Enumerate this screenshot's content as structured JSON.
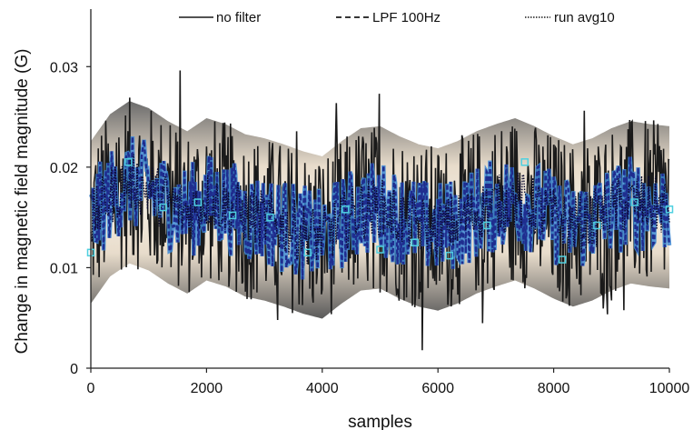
{
  "chart_data": {
    "type": "line",
    "xlabel": "samples",
    "ylabel": "Change in magnetic field magnitude (G)",
    "xlim": [
      0,
      10000
    ],
    "ylim": [
      0,
      0.035
    ],
    "x_ticks": [
      {
        "value": 0,
        "label": "0"
      },
      {
        "value": 2000,
        "label": "2000"
      },
      {
        "value": 4000,
        "label": "4000"
      },
      {
        "value": 6000,
        "label": "6000"
      },
      {
        "value": 8000,
        "label": "8000"
      },
      {
        "value": 10000,
        "label": "10000"
      }
    ],
    "y_ticks": [
      {
        "value": 0,
        "label": "0"
      },
      {
        "value": 0.01,
        "label": "0.01"
      },
      {
        "value": 0.02,
        "label": "0.02"
      },
      {
        "value": 0.03,
        "label": "0.03"
      }
    ],
    "grid": false,
    "legend_position": "top",
    "series": [
      {
        "name": "no filter",
        "style": "solid",
        "color": "#1a1a1a",
        "x": [
          0,
          333,
          667,
          1000,
          1333,
          1667,
          2000,
          2333,
          2667,
          3000,
          3333,
          3667,
          4000,
          4333,
          4667,
          5000,
          5333,
          5667,
          6000,
          6333,
          6667,
          7000,
          7333,
          7667,
          8000,
          8333,
          8667,
          9000,
          9333,
          9667,
          10000
        ],
        "y": [
          0.0145,
          0.0172,
          0.0185,
          0.0178,
          0.0165,
          0.0155,
          0.0168,
          0.0162,
          0.0152,
          0.0148,
          0.0142,
          0.0135,
          0.013,
          0.0145,
          0.0158,
          0.016,
          0.015,
          0.0142,
          0.0138,
          0.0145,
          0.0155,
          0.0162,
          0.0168,
          0.016,
          0.015,
          0.0142,
          0.0148,
          0.0158,
          0.0165,
          0.0162,
          0.016
        ],
        "spread": 0.0085,
        "max": 0.033,
        "min": 0.001
      },
      {
        "name": "LPF 100Hz",
        "style": "dashed",
        "color": "#1f2d8f",
        "x": [
          0,
          333,
          667,
          1000,
          1333,
          1667,
          2000,
          2333,
          2667,
          3000,
          3333,
          3667,
          4000,
          4333,
          4667,
          5000,
          5333,
          5667,
          6000,
          6333,
          6667,
          7000,
          7333,
          7667,
          8000,
          8333,
          8667,
          9000,
          9333,
          9667,
          10000
        ],
        "y": [
          0.0145,
          0.0172,
          0.0185,
          0.0178,
          0.0165,
          0.0155,
          0.0168,
          0.0162,
          0.0152,
          0.0148,
          0.0142,
          0.0135,
          0.013,
          0.0145,
          0.0158,
          0.016,
          0.015,
          0.0142,
          0.0138,
          0.0145,
          0.0155,
          0.0162,
          0.0168,
          0.016,
          0.015,
          0.0142,
          0.0148,
          0.0158,
          0.0165,
          0.0162,
          0.016
        ],
        "spread": 0.0048
      },
      {
        "name": "run avg10",
        "style": "dotted",
        "color": "#0a0a30",
        "x": [
          0,
          333,
          667,
          1000,
          1333,
          1667,
          2000,
          2333,
          2667,
          3000,
          3333,
          3667,
          4000,
          4333,
          4667,
          5000,
          5333,
          5667,
          6000,
          6333,
          6667,
          7000,
          7333,
          7667,
          8000,
          8333,
          8667,
          9000,
          9333,
          9667,
          10000
        ],
        "y": [
          0.0145,
          0.0172,
          0.0185,
          0.0178,
          0.0165,
          0.0155,
          0.0168,
          0.0162,
          0.0152,
          0.0148,
          0.0142,
          0.0135,
          0.013,
          0.0145,
          0.0158,
          0.016,
          0.015,
          0.0142,
          0.0138,
          0.0145,
          0.0155,
          0.0162,
          0.0168,
          0.016,
          0.015,
          0.0142,
          0.0148,
          0.0158,
          0.0165,
          0.0162,
          0.016
        ],
        "spread": 0.003
      }
    ],
    "markers": {
      "color": "#4fd0e0",
      "x": [
        0,
        650,
        1250,
        1850,
        2450,
        3100,
        3750,
        4400,
        5000,
        5600,
        6200,
        6850,
        7500,
        8150,
        8750,
        9400,
        10000
      ],
      "y": [
        0.0115,
        0.0205,
        0.016,
        0.0165,
        0.0152,
        0.015,
        0.0115,
        0.0158,
        0.0118,
        0.0125,
        0.0112,
        0.0142,
        0.0205,
        0.0108,
        0.0142,
        0.0165,
        0.0158
      ]
    }
  }
}
